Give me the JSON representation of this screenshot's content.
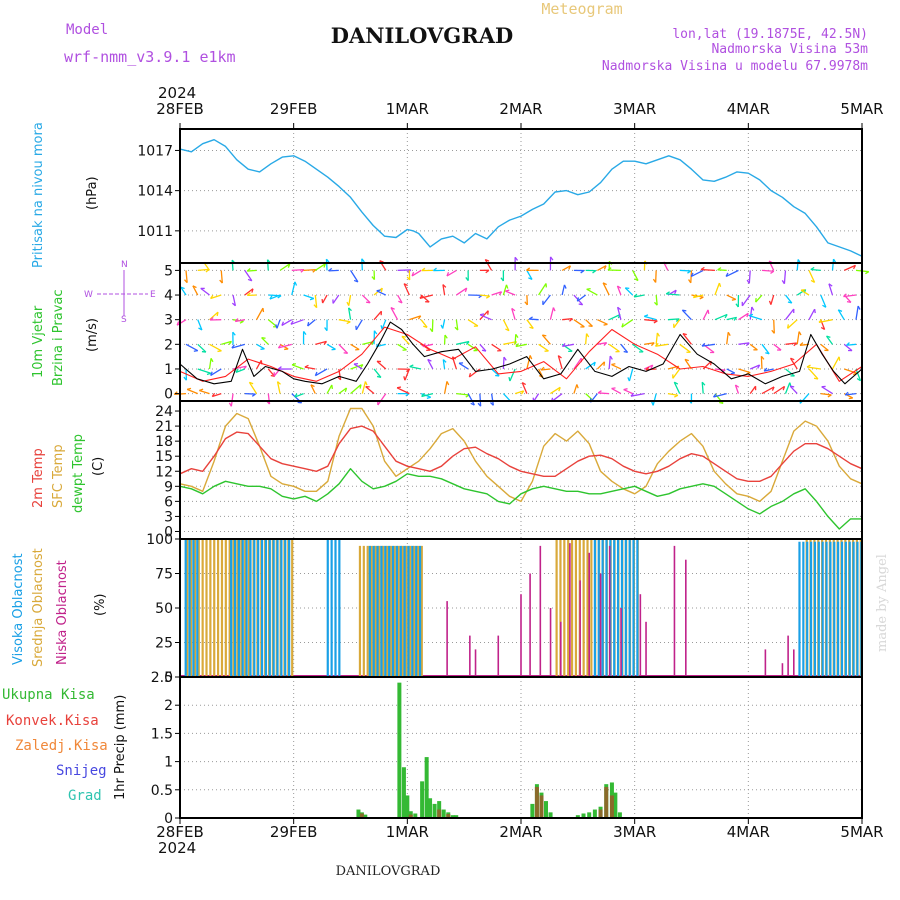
{
  "header": {
    "model_label": "Model",
    "model_name": "wrf-nmm_v3.9.1  e1km",
    "title": "DANILOVGRAD",
    "product": "Meteogram",
    "coords": "lon,lat (19.1875E, 42.5N)",
    "elevation": "Nadmorska Visina 53m",
    "model_elevation": "Nadmorska Visina u modelu 67.9978m",
    "year_top": "2024",
    "year_bottom": "2024",
    "footer": "DANILOVGRAD",
    "watermark": "made by Angel"
  },
  "time_axis": {
    "labels": [
      "28FEB",
      "29FEB",
      "1MAR",
      "2MAR",
      "3MAR",
      "4MAR",
      "5MAR"
    ],
    "range_days": [
      0,
      6
    ]
  },
  "colors": {
    "pressure": "#29a9e6",
    "temp2m": "#e8423c",
    "sfc": "#d9a93a",
    "dewpt": "#2ec42e",
    "high_cloud": "#1aa0e6",
    "mid_cloud": "#d9a93a",
    "low_cloud": "#c0228a",
    "total_precip": "#34b934",
    "conv_precip": "#e8423c",
    "frozen": "#f0883a",
    "snow": "#4848e0",
    "hail": "#2ec4b0"
  },
  "panels": {
    "pressure": {
      "ylabel": "Pritisak na nivou mora",
      "unit": "(hPa)"
    },
    "wind": {
      "ylabel1": "10m Vjetar",
      "ylabel2": "Brzina i Pravac",
      "unit": "(m/s)",
      "compass_n": "N",
      "compass_s": "S",
      "compass_w": "W",
      "compass_e": "E"
    },
    "temp": {
      "label1": "2m Temp",
      "label2": "SFC Temp",
      "label3": "dewpt Temp",
      "unit": "(C)"
    },
    "cloud": {
      "label1": "Visoka Oblacnost",
      "label2": "Srednja Oblacnost",
      "label3": "Niska Oblacnost",
      "unit": "(%)"
    },
    "precip": {
      "ylabel": "1hr Precip (mm)",
      "legend": [
        "Ukupna Kisa",
        "Konvek.Kisa",
        "Zaledj.Kisa",
        "Snijeg",
        "Grad"
      ]
    }
  },
  "chart_data": [
    {
      "type": "line",
      "title": "Pritisak na nivou mora",
      "ylabel": "(hPa)",
      "ylim": [
        1008.6,
        1018.6
      ],
      "yticks": [
        1011,
        1014,
        1017
      ],
      "grid": true,
      "series": [
        {
          "x": [
            0,
            0.1,
            0.2,
            0.3,
            0.4,
            0.5,
            0.6,
            0.7,
            0.8,
            0.9,
            1.0,
            1.1,
            1.2,
            1.3,
            1.4,
            1.5,
            1.6,
            1.7,
            1.8,
            1.9,
            2.0,
            2.05,
            2.1,
            2.2,
            2.3,
            2.4,
            2.5,
            2.6,
            2.7,
            2.8,
            2.9,
            3.0,
            3.1,
            3.2,
            3.3,
            3.4,
            3.5,
            3.6,
            3.7,
            3.8,
            3.9,
            4.0,
            4.1,
            4.2,
            4.3,
            4.4,
            4.5,
            4.6,
            4.7,
            4.8,
            4.9,
            5.0,
            5.1,
            5.2,
            5.3,
            5.4,
            5.5,
            5.6,
            5.7,
            5.8,
            5.9,
            6.0
          ],
          "values": [
            1017.1,
            1016.9,
            1017.5,
            1017.8,
            1017.3,
            1016.3,
            1015.6,
            1015.4,
            1016.0,
            1016.5,
            1016.6,
            1016.2,
            1015.6,
            1015.0,
            1014.3,
            1013.5,
            1012.4,
            1011.4,
            1010.6,
            1010.5,
            1011.1,
            1011.0,
            1010.8,
            1009.8,
            1010.4,
            1010.6,
            1010.1,
            1010.8,
            1010.4,
            1011.3,
            1011.8,
            1012.1,
            1012.6,
            1013.0,
            1013.9,
            1014.0,
            1013.7,
            1013.9,
            1014.6,
            1015.6,
            1016.2,
            1016.2,
            1016.0,
            1016.3,
            1016.6,
            1016.3,
            1015.6,
            1014.8,
            1014.7,
            1015.0,
            1015.4,
            1015.3,
            1014.8,
            1014.0,
            1013.5,
            1012.8,
            1012.3,
            1011.3,
            1010.1,
            1009.8,
            1009.5,
            1009.1
          ]
        }
      ]
    },
    {
      "type": "line",
      "title": "10m Vjetar Brzina i Pravac",
      "ylabel": "(m/s)",
      "ylim": [
        -0.3,
        5.3
      ],
      "yticks": [
        0,
        1,
        2,
        3,
        4,
        5
      ],
      "grid": true,
      "series": [
        {
          "name": "speed",
          "x": [
            0,
            0.15,
            0.3,
            0.45,
            0.55,
            0.65,
            0.75,
            0.9,
            1.0,
            1.1,
            1.25,
            1.4,
            1.55,
            1.65,
            1.75,
            1.85,
            1.95,
            2.05,
            2.15,
            2.3,
            2.45,
            2.6,
            2.75,
            2.9,
            3.05,
            3.2,
            3.35,
            3.5,
            3.65,
            3.8,
            3.95,
            4.1,
            4.25,
            4.4,
            4.55,
            4.7,
            4.85,
            5.0,
            5.15,
            5.3,
            5.45,
            5.55,
            5.65,
            5.75,
            5.85,
            6.0
          ],
          "values": [
            1.2,
            0.6,
            0.4,
            0.5,
            1.8,
            0.7,
            1.1,
            0.9,
            0.6,
            0.5,
            0.4,
            0.7,
            0.5,
            1.2,
            2.0,
            2.9,
            2.6,
            2.0,
            1.5,
            1.7,
            1.8,
            0.9,
            1.0,
            1.2,
            1.5,
            0.6,
            0.8,
            1.8,
            0.9,
            0.7,
            1.1,
            0.9,
            1.2,
            2.4,
            1.6,
            1.2,
            0.6,
            0.8,
            0.4,
            0.7,
            0.9,
            2.4,
            1.6,
            0.9,
            0.4,
            1.0
          ]
        },
        {
          "name": "gust",
          "x": [
            0,
            0.2,
            0.4,
            0.6,
            0.8,
            1.0,
            1.2,
            1.4,
            1.6,
            1.8,
            2.0,
            2.2,
            2.4,
            2.6,
            2.8,
            3.0,
            3.2,
            3.4,
            3.6,
            3.8,
            4.0,
            4.2,
            4.4,
            4.6,
            4.8,
            5.0,
            5.2,
            5.4,
            5.6,
            5.8,
            6.0
          ],
          "values": [
            0.9,
            0.5,
            0.7,
            1.4,
            1.1,
            0.7,
            0.5,
            0.9,
            1.6,
            2.7,
            2.4,
            1.8,
            1.4,
            1.9,
            0.8,
            0.9,
            1.3,
            0.6,
            1.7,
            2.6,
            2.0,
            1.6,
            1.0,
            1.1,
            0.8,
            0.7,
            0.9,
            1.2,
            2.0,
            0.5,
            1.1
          ]
        }
      ]
    },
    {
      "type": "line",
      "title": "2m Temp / SFC Temp / dewpt Temp",
      "ylabel": "(C)",
      "ylim": [
        -1.5,
        26
      ],
      "yticks": [
        0,
        3,
        6,
        9,
        12,
        15,
        18,
        21,
        24
      ],
      "grid": true,
      "series": [
        {
          "name": "2m Temp",
          "x": [
            0,
            0.1,
            0.2,
            0.3,
            0.4,
            0.5,
            0.6,
            0.7,
            0.8,
            0.9,
            1.0,
            1.1,
            1.2,
            1.3,
            1.4,
            1.5,
            1.6,
            1.7,
            1.8,
            1.9,
            2.0,
            2.1,
            2.2,
            2.3,
            2.4,
            2.5,
            2.6,
            2.7,
            2.8,
            2.9,
            3.0,
            3.1,
            3.2,
            3.3,
            3.4,
            3.5,
            3.6,
            3.7,
            3.8,
            3.9,
            4.0,
            4.1,
            4.2,
            4.3,
            4.4,
            4.5,
            4.6,
            4.7,
            4.8,
            4.9,
            5.0,
            5.1,
            5.2,
            5.3,
            5.4,
            5.5,
            5.6,
            5.7,
            5.8,
            5.9,
            6.0
          ],
          "values": [
            11.5,
            12.5,
            12.0,
            15.0,
            18.5,
            19.8,
            19.5,
            17.0,
            14.5,
            13.5,
            13.0,
            12.5,
            12.0,
            13.0,
            17.5,
            20.5,
            21.0,
            20.0,
            17.0,
            14.0,
            13.0,
            12.5,
            12.0,
            13.0,
            15.0,
            16.5,
            16.8,
            15.5,
            14.5,
            13.0,
            12.0,
            11.5,
            11.0,
            11.0,
            12.5,
            14.0,
            15.0,
            15.2,
            14.5,
            13.0,
            12.0,
            11.5,
            12.0,
            13.0,
            14.5,
            15.5,
            15.0,
            13.5,
            12.0,
            10.5,
            10.0,
            10.0,
            11.0,
            13.5,
            16.0,
            17.5,
            17.5,
            16.5,
            15.0,
            13.5,
            12.5
          ]
        },
        {
          "name": "SFC Temp",
          "x": [
            0,
            0.1,
            0.2,
            0.3,
            0.4,
            0.5,
            0.6,
            0.7,
            0.8,
            0.9,
            1.0,
            1.1,
            1.2,
            1.3,
            1.4,
            1.5,
            1.6,
            1.7,
            1.8,
            1.9,
            2.0,
            2.1,
            2.2,
            2.3,
            2.4,
            2.5,
            2.6,
            2.7,
            2.8,
            2.9,
            3.0,
            3.1,
            3.2,
            3.3,
            3.4,
            3.5,
            3.6,
            3.7,
            3.8,
            3.9,
            4.0,
            4.1,
            4.2,
            4.3,
            4.4,
            4.5,
            4.6,
            4.7,
            4.8,
            4.9,
            5.0,
            5.1,
            5.2,
            5.3,
            5.4,
            5.5,
            5.6,
            5.7,
            5.8,
            5.9,
            6.0
          ],
          "values": [
            9.5,
            9.0,
            8.0,
            14.0,
            21.0,
            23.5,
            22.5,
            17.0,
            11.0,
            9.5,
            9.0,
            8.0,
            8.0,
            10.0,
            19.0,
            24.5,
            24.5,
            21.0,
            14.0,
            11.0,
            12.5,
            14.0,
            16.5,
            19.5,
            20.5,
            18.0,
            14.0,
            11.0,
            9.0,
            7.0,
            6.0,
            10.0,
            17.0,
            19.5,
            18.0,
            20.0,
            17.5,
            12.0,
            10.0,
            8.5,
            7.5,
            9.0,
            13.5,
            16.0,
            18.0,
            19.5,
            17.0,
            12.0,
            9.5,
            7.5,
            7.0,
            6.0,
            8.0,
            14.0,
            20.0,
            22.0,
            21.0,
            18.0,
            13.0,
            10.5,
            9.5
          ]
        },
        {
          "name": "dewpt Temp",
          "x": [
            0,
            0.1,
            0.2,
            0.3,
            0.4,
            0.5,
            0.6,
            0.7,
            0.8,
            0.9,
            1.0,
            1.1,
            1.2,
            1.3,
            1.4,
            1.5,
            1.6,
            1.7,
            1.8,
            1.9,
            2.0,
            2.1,
            2.2,
            2.3,
            2.4,
            2.5,
            2.6,
            2.7,
            2.8,
            2.9,
            3.0,
            3.1,
            3.2,
            3.3,
            3.4,
            3.5,
            3.6,
            3.7,
            3.8,
            3.9,
            4.0,
            4.1,
            4.2,
            4.3,
            4.4,
            4.5,
            4.6,
            4.7,
            4.8,
            4.9,
            5.0,
            5.1,
            5.2,
            5.3,
            5.4,
            5.5,
            5.6,
            5.7,
            5.8,
            5.9,
            6.0
          ],
          "values": [
            9.0,
            8.5,
            7.5,
            9.0,
            10.0,
            9.5,
            9.0,
            9.0,
            8.5,
            7.0,
            6.5,
            7.0,
            6.0,
            7.5,
            9.5,
            12.5,
            10.0,
            8.5,
            9.0,
            10.0,
            11.5,
            11.0,
            11.0,
            10.5,
            9.5,
            8.5,
            8.0,
            7.5,
            6.0,
            5.5,
            7.5,
            8.5,
            9.0,
            8.5,
            8.0,
            8.0,
            7.5,
            7.5,
            8.0,
            8.5,
            9.0,
            8.0,
            7.0,
            7.5,
            8.5,
            9.0,
            9.5,
            9.0,
            7.5,
            6.0,
            4.5,
            3.5,
            5.0,
            6.0,
            7.5,
            8.5,
            6.0,
            3.0,
            0.5,
            2.5,
            2.5
          ]
        }
      ]
    },
    {
      "type": "bar",
      "title": "Visoka / Srednja / Niska Oblacnost",
      "ylabel": "(%)",
      "ylim": [
        0,
        100
      ],
      "yticks": [
        0,
        25,
        50,
        75,
        100
      ],
      "grid": true,
      "series": [
        {
          "name": "Visoka Oblacnost",
          "segments": [
            [
              0.05,
              0.18,
              100
            ],
            [
              0.45,
              0.98,
              100
            ],
            [
              1.3,
              1.42,
              100
            ],
            [
              1.67,
              2.14,
              95
            ],
            [
              3.65,
              4.04,
              100
            ],
            [
              5.45,
              6.0,
              98
            ]
          ]
        },
        {
          "name": "Srednja Oblacnost",
          "segments": [
            [
              0.05,
              0.6,
              100
            ],
            [
              0.6,
              1.0,
              100
            ],
            [
              1.57,
              2.14,
              95
            ],
            [
              3.3,
              4.04,
              100
            ],
            [
              5.5,
              6.0,
              100
            ]
          ]
        },
        {
          "name": "Niska Oblacnost",
          "x": [
            2.35,
            2.55,
            2.6,
            2.8,
            3.0,
            3.08,
            3.17,
            3.26,
            3.35,
            3.43,
            3.52,
            3.6,
            3.7,
            3.78,
            3.88,
            4.05,
            4.1,
            4.35,
            4.45,
            5.15,
            5.3,
            5.35,
            5.4
          ],
          "values": [
            55,
            30,
            20,
            30,
            60,
            75,
            95,
            50,
            40,
            97,
            70,
            90,
            75,
            95,
            50,
            60,
            40,
            95,
            85,
            20,
            10,
            30,
            20
          ]
        }
      ]
    },
    {
      "type": "bar",
      "title": "1hr Precip",
      "ylabel": "1hr Precip (mm)",
      "ylim": [
        0,
        2.5
      ],
      "yticks": [
        0,
        0.5,
        1,
        1.5,
        2,
        2.5
      ],
      "grid": true,
      "series": [
        {
          "name": "Ukupna Kisa",
          "x": [
            1.57,
            1.6,
            1.63,
            1.93,
            1.97,
            2.0,
            2.03,
            2.07,
            2.13,
            2.17,
            2.2,
            2.24,
            2.28,
            2.32,
            2.36,
            2.4,
            2.43,
            3.1,
            3.14,
            3.18,
            3.22,
            3.26,
            3.5,
            3.55,
            3.6,
            3.65,
            3.7,
            3.75,
            3.8,
            3.83,
            3.87
          ],
          "values": [
            0.15,
            0.1,
            0.06,
            2.4,
            0.9,
            0.4,
            0.12,
            0.08,
            0.65,
            1.08,
            0.35,
            0.25,
            0.3,
            0.15,
            0.1,
            0.05,
            0.05,
            0.25,
            0.6,
            0.45,
            0.3,
            0.1,
            0.05,
            0.08,
            0.1,
            0.15,
            0.2,
            0.6,
            0.63,
            0.45,
            0.1
          ]
        },
        {
          "name": "Konvek.Kisa",
          "x": [
            1.6,
            2.03,
            2.28,
            2.36,
            3.14,
            3.18,
            3.7,
            3.75,
            3.8
          ],
          "values": [
            0.08,
            0.06,
            0.15,
            0.07,
            0.55,
            0.4,
            0.15,
            0.55,
            0.4
          ]
        }
      ]
    }
  ]
}
